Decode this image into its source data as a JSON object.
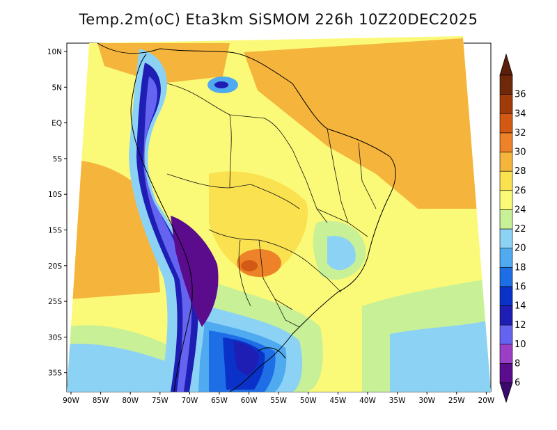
{
  "title": "Temp.2m(oC) Eta3km SiSMOM 226h 10Z20DEC2025",
  "map": {
    "variable": "2 m air temperature",
    "unit": "oC",
    "region": "South America",
    "lon_ticks": [
      "90W",
      "85W",
      "80W",
      "75W",
      "70W",
      "65W",
      "60W",
      "55W",
      "50W",
      "45W",
      "40W",
      "35W",
      "30W",
      "25W",
      "20W"
    ],
    "lat_ticks": [
      "10N",
      "5N",
      "EQ",
      "5S",
      "10S",
      "15S",
      "20S",
      "25S",
      "30S",
      "35S"
    ]
  },
  "colorbar": {
    "levels": [
      "6",
      "8",
      "10",
      "12",
      "14",
      "16",
      "18",
      "20",
      "22",
      "24",
      "26",
      "28",
      "30",
      "32",
      "34",
      "36"
    ],
    "colors": [
      "#5a0c8c",
      "#9a3fc6",
      "#6464f0",
      "#1e1eb4",
      "#0a32c8",
      "#1e6ee6",
      "#50aaf0",
      "#8cd2f5",
      "#c8f096",
      "#fafa78",
      "#fae150",
      "#f5b43c",
      "#ee8228",
      "#d25a14",
      "#a03c0a",
      "#6e280a"
    ],
    "under_color": "#3c0a6e",
    "over_color": "#5a1e0a"
  }
}
